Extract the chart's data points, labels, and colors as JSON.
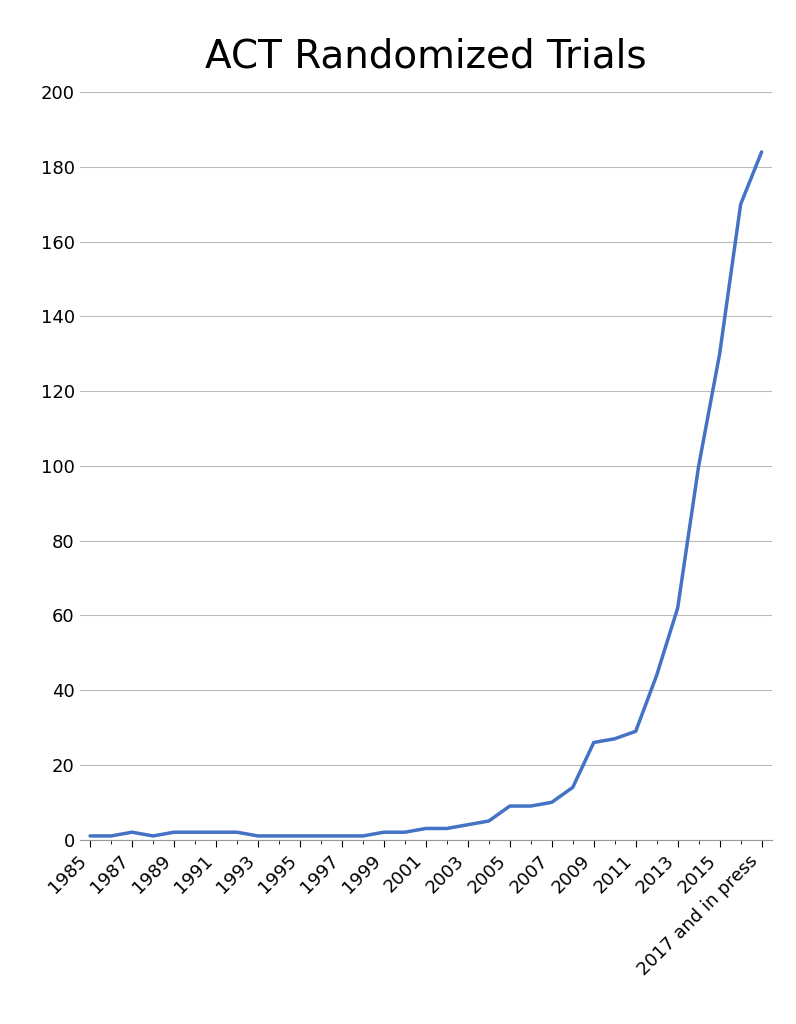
{
  "title": "ACT Randomized Trials",
  "title_fontsize": 28,
  "line_color": "#4472C4",
  "line_width": 2.5,
  "background_color": "#ffffff",
  "ylim": [
    0,
    200
  ],
  "yticks": [
    0,
    20,
    40,
    60,
    80,
    100,
    120,
    140,
    160,
    180,
    200
  ],
  "grid_color": "#bbbbbb",
  "years": [
    1985,
    1986,
    1987,
    1988,
    1989,
    1990,
    1991,
    1992,
    1993,
    1994,
    1995,
    1996,
    1997,
    1998,
    1999,
    2000,
    2001,
    2002,
    2003,
    2004,
    2005,
    2006,
    2007,
    2008,
    2009,
    2010,
    2011,
    2012,
    2013,
    2014,
    2015,
    2016,
    2017
  ],
  "values": [
    1,
    1,
    2,
    1,
    2,
    2,
    2,
    2,
    1,
    1,
    1,
    1,
    1,
    1,
    2,
    2,
    3,
    3,
    4,
    5,
    9,
    9,
    10,
    14,
    26,
    27,
    29,
    44,
    62,
    100,
    130,
    170,
    184
  ],
  "xtick_labels": [
    "1985",
    "1987",
    "1989",
    "1991",
    "1993",
    "1995",
    "1997",
    "1999",
    "2001",
    "2003",
    "2005",
    "2007",
    "2009",
    "2011",
    "2013",
    "2015",
    "2017 and in press"
  ],
  "xtick_positions": [
    1985,
    1987,
    1989,
    1991,
    1993,
    1995,
    1997,
    1999,
    2001,
    2003,
    2005,
    2007,
    2009,
    2011,
    2013,
    2015,
    2017
  ],
  "all_years": [
    1985,
    1986,
    1987,
    1988,
    1989,
    1990,
    1991,
    1992,
    1993,
    1994,
    1995,
    1996,
    1997,
    1998,
    1999,
    2000,
    2001,
    2002,
    2003,
    2004,
    2005,
    2006,
    2007,
    2008,
    2009,
    2010,
    2011,
    2012,
    2013,
    2014,
    2015,
    2016,
    2017
  ]
}
